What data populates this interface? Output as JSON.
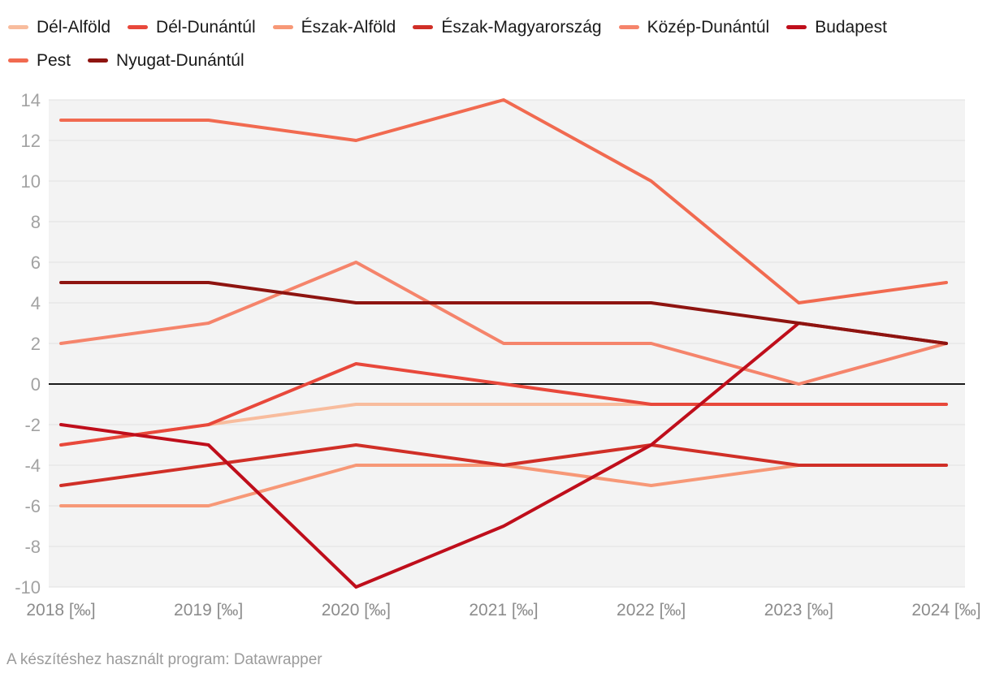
{
  "chart_data": {
    "type": "line",
    "categories": [
      2018,
      2019,
      2020,
      2021,
      2022,
      2023,
      2024
    ],
    "x_tick_labels": [
      "2018 [‰]",
      "2019 [‰]",
      "2020 [‰]",
      "2021 [‰]",
      "2022 [‰]",
      "2023 [‰]",
      "2024 [‰]"
    ],
    "y_ticks": [
      14,
      12,
      10,
      8,
      6,
      4,
      2,
      0,
      -2,
      -4,
      -6,
      -8,
      -10
    ],
    "ylim": [
      -10,
      14
    ],
    "unit": "‰",
    "grid": "horizontal",
    "zero_baseline": true,
    "legend_position": "top",
    "series": [
      {
        "key": "del-alfold",
        "name": "Dél-Alföld",
        "color": "#f8bc9d",
        "values": [
          -3,
          -2,
          -1,
          -1,
          -1,
          -1,
          -1
        ]
      },
      {
        "key": "del-dunantul",
        "name": "Dél-Dunántúl",
        "color": "#e8483b",
        "values": [
          -3,
          -2,
          1,
          0,
          -1,
          -1,
          -1
        ]
      },
      {
        "key": "eszak-alfold",
        "name": "Észak-Alföld",
        "color": "#f79877",
        "values": [
          -6,
          -6,
          -4,
          -4,
          -5,
          -4,
          -4
        ]
      },
      {
        "key": "eszak-magyarorszag",
        "name": "Észak-Magyarország",
        "color": "#d02f27",
        "values": [
          -5,
          -4,
          -3,
          -4,
          -3,
          -4,
          -4
        ]
      },
      {
        "key": "kozep-dunantul",
        "name": "Közép-Dunántúl",
        "color": "#f5846b",
        "values": [
          2,
          3,
          6,
          2,
          2,
          0,
          2
        ]
      },
      {
        "key": "budapest",
        "name": "Budapest",
        "color": "#bf0e1b",
        "values": [
          -2,
          -3,
          -10,
          -7,
          -3,
          3,
          2
        ]
      },
      {
        "key": "pest",
        "name": "Pest",
        "color": "#f16a50",
        "values": [
          13,
          13,
          12,
          14,
          10,
          4,
          5
        ]
      },
      {
        "key": "nyugat-dunantul",
        "name": "Nyugat-Dunántúl",
        "color": "#8e1410",
        "values": [
          5,
          5,
          4,
          4,
          4,
          3,
          2
        ]
      }
    ]
  },
  "footer": {
    "credit": "A készítéshez használt program: Datawrapper"
  },
  "style": {
    "page_background": "#ffffff",
    "plot_background": "#f3f3f3",
    "gridline_color": "#e2e2e2",
    "zero_line_color": "#1a1a1a",
    "y_tick_text_color": "#a2a2a2",
    "x_tick_text_color": "#8c8c8c",
    "legend_text_color": "#1a1a1a",
    "footer_text_color": "#9b9b9b"
  }
}
